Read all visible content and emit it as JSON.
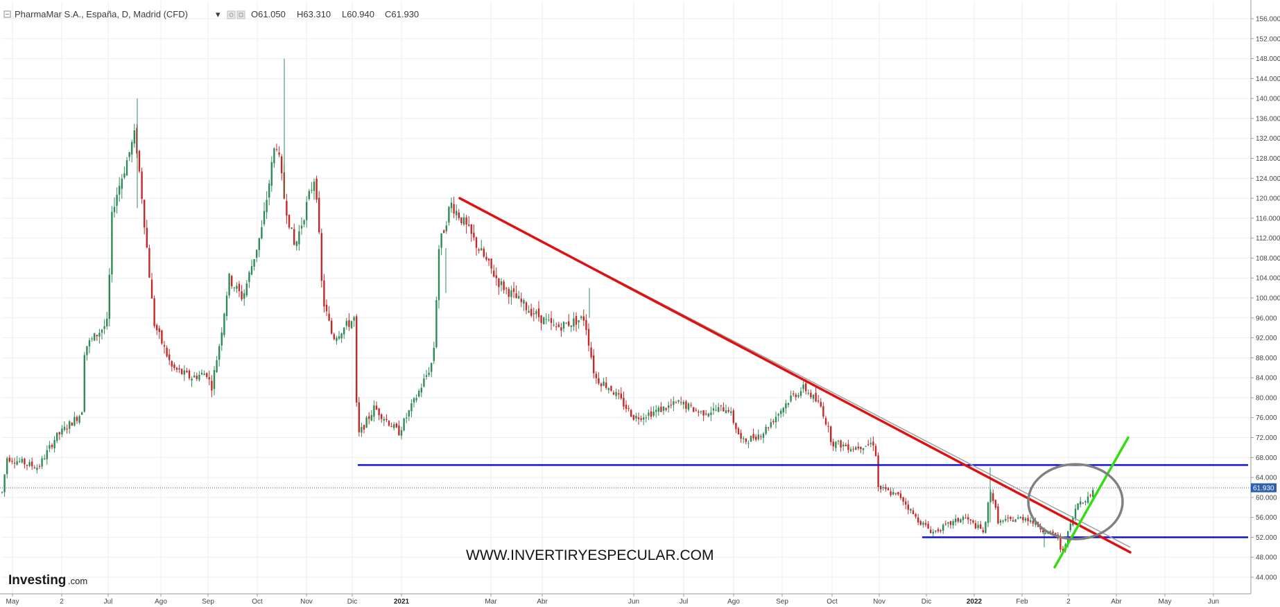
{
  "header": {
    "symbol": "PharmaMar S.A., España, D, Madrid (CFD)",
    "dropdown_glyph": "▾",
    "open": "O61.050",
    "high": "H63.310",
    "low": "L60.940",
    "close": "C61.930"
  },
  "watermark": "WWW.INVERTIRYESPECULAR.COM",
  "brand": {
    "name": "Investing",
    "suffix": ".com"
  },
  "last_price_label": "61.930",
  "colors": {
    "up": "#2e8b57",
    "down": "#c62828",
    "trendline_red": "#e01010",
    "support_blue": "#1010d0",
    "trendline_green": "#33dd11",
    "circle": "#808080",
    "price_tag": "#2f5fb0"
  },
  "chart_data": {
    "type": "candlestick",
    "instrument": "PharmaMar S.A., España, D, Madrid (CFD)",
    "timeframe": "D",
    "last": {
      "open": 61.05,
      "high": 63.31,
      "low": 60.94,
      "close": 61.93
    },
    "ylim": [
      42,
      158
    ],
    "y_ticks": [
      "44.000",
      "48.000",
      "52.000",
      "56.000",
      "60.000",
      "64.000",
      "68.000",
      "72.000",
      "76.000",
      "80.000",
      "84.000",
      "88.000",
      "92.000",
      "96.000",
      "100.000",
      "104.000",
      "108.000",
      "112.000",
      "116.000",
      "120.000",
      "124.000",
      "128.000",
      "132.000",
      "136.000",
      "140.000",
      "144.000",
      "148.000",
      "152.000",
      "156.000"
    ],
    "x_ticks": [
      {
        "label": "May",
        "bold": false
      },
      {
        "label": "2",
        "bold": false
      },
      {
        "label": "Jul",
        "bold": false
      },
      {
        "label": "Ago",
        "bold": false
      },
      {
        "label": "Sep",
        "bold": false
      },
      {
        "label": "Oct",
        "bold": false
      },
      {
        "label": "Nov",
        "bold": false
      },
      {
        "label": "Dic",
        "bold": false
      },
      {
        "label": "2021",
        "bold": true
      },
      {
        "label": "Mar",
        "bold": false
      },
      {
        "label": "Abr",
        "bold": false
      },
      {
        "label": "Jun",
        "bold": false
      },
      {
        "label": "Jul",
        "bold": false
      },
      {
        "label": "Ago",
        "bold": false
      },
      {
        "label": "Sep",
        "bold": false
      },
      {
        "label": "Oct",
        "bold": false
      },
      {
        "label": "Nov",
        "bold": false
      },
      {
        "label": "Dic",
        "bold": false
      },
      {
        "label": "2022",
        "bold": true
      },
      {
        "label": "Feb",
        "bold": false
      },
      {
        "label": "2",
        "bold": false
      },
      {
        "label": "Abr",
        "bold": false
      },
      {
        "label": "May",
        "bold": false
      },
      {
        "label": "Jun",
        "bold": false
      }
    ],
    "price_path": [
      [
        "May",
        60
      ],
      [
        "May",
        68
      ],
      [
        "2",
        66
      ],
      [
        "2",
        72
      ],
      [
        "2",
        77
      ],
      [
        "Jul",
        90
      ],
      [
        "Jul",
        95
      ],
      [
        "Jul",
        118
      ],
      [
        "Jul",
        133
      ],
      [
        "Jul",
        120
      ],
      [
        "Ago",
        95
      ],
      [
        "Ago",
        86
      ],
      [
        "Ago",
        84
      ],
      [
        "Sep",
        85
      ],
      [
        "Sep",
        82
      ],
      [
        "Sep",
        92
      ],
      [
        "Sep",
        104
      ],
      [
        "Oct",
        100
      ],
      [
        "Oct",
        114
      ],
      [
        "Oct",
        132
      ],
      [
        "Oct",
        120
      ],
      [
        "Oct",
        110
      ],
      [
        "Nov",
        125
      ],
      [
        "Nov",
        100
      ],
      [
        "Nov",
        92
      ],
      [
        "Nov",
        96
      ],
      [
        "Dic",
        72
      ],
      [
        "Dic",
        78
      ],
      [
        "Dic",
        73
      ],
      [
        "Dic",
        80
      ],
      [
        "Dic",
        86
      ],
      [
        "2021",
        88
      ],
      [
        "2021",
        110
      ],
      [
        "2021",
        119
      ],
      [
        "2021",
        116
      ],
      [
        "Mar",
        110
      ],
      [
        "Mar",
        103
      ],
      [
        "Abr",
        98
      ],
      [
        "Abr",
        94
      ],
      [
        "Abr",
        96
      ],
      [
        "Abr",
        84
      ],
      [
        "Abr",
        82
      ],
      [
        "Jun",
        76
      ],
      [
        "Jun",
        77
      ],
      [
        "Jul",
        79
      ],
      [
        "Jul",
        77
      ],
      [
        "Ago",
        78
      ],
      [
        "Ago",
        71
      ],
      [
        "Ago",
        73
      ],
      [
        "Sep",
        80
      ],
      [
        "Sep",
        82
      ],
      [
        "Sep",
        78
      ],
      [
        "Oct",
        71
      ],
      [
        "Oct",
        70
      ],
      [
        "Oct",
        71
      ],
      [
        "Nov",
        62
      ],
      [
        "Nov",
        60
      ],
      [
        "Nov",
        56
      ],
      [
        "Dic",
        53
      ],
      [
        "Dic",
        56
      ],
      [
        "Dic",
        53
      ],
      [
        "2022",
        62
      ],
      [
        "2022",
        55
      ],
      [
        "2022",
        56
      ],
      [
        "Feb",
        54
      ],
      [
        "Feb",
        53
      ],
      [
        "Feb",
        52
      ],
      [
        "Feb",
        48
      ],
      [
        "2",
        55
      ],
      [
        "2",
        59
      ],
      [
        "2",
        60
      ],
      [
        "2",
        62
      ]
    ],
    "annotations": [
      {
        "type": "trendline",
        "color": "red",
        "from": [
          "Mar",
          120
        ],
        "to": [
          "Abr",
          49
        ]
      },
      {
        "type": "horizontal",
        "color": "blue",
        "level": 66.5,
        "from": "Dic",
        "to": "right-edge"
      },
      {
        "type": "horizontal",
        "color": "blue",
        "level": 52,
        "from": "Dic",
        "to": "right-edge"
      },
      {
        "type": "trendline",
        "color": "green",
        "from": [
          "Feb",
          46
        ],
        "to": [
          "Abr",
          72
        ]
      },
      {
        "type": "ellipse",
        "color": "grey",
        "center": [
          "2",
          58
        ]
      },
      {
        "type": "hline-dotted",
        "level": 61.93
      }
    ]
  }
}
